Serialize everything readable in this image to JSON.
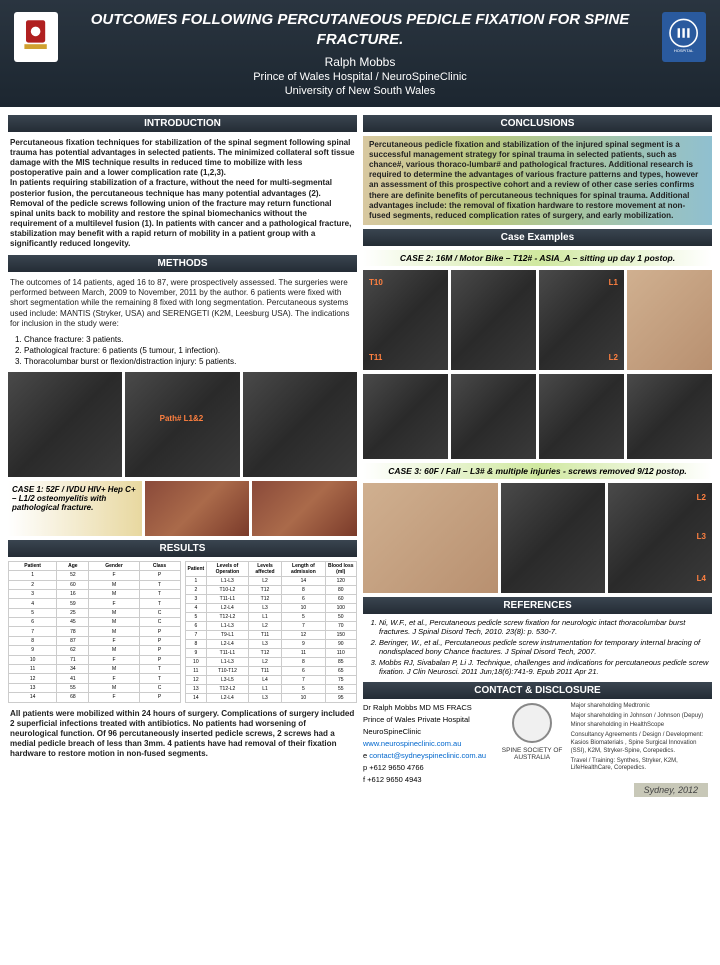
{
  "header": {
    "title": "OUTCOMES FOLLOWING PERCUTANEOUS PEDICLE FIXATION FOR SPINE FRACTURE.",
    "author": "Ralph Mobbs",
    "affil1": "Prince of Wales Hospital / NeuroSpineClinic",
    "affil2": "University of New South Wales"
  },
  "intro": {
    "heading": "INTRODUCTION",
    "text": "Percutaneous fixation techniques for stabilization of the spinal segment following spinal trauma has potential advantages in selected patients. The minimized collateral soft tissue damage with the MIS technique results in reduced time to mobilize with less postoperative pain and a lower complication rate (1,2,3).\nIn patients requiring stabilization of a fracture, without the need for multi-segmental posterior fusion, the percutaneous technique has many potential advantages (2). Removal of the pedicle screws following union of the fracture may return functional spinal units back to mobility and restore the spinal biomechanics without the requirement of a multilevel fusion (1). In patients with cancer and a pathological fracture, stabilization may benefit with a rapid return of mobility in a patient group with a significantly reduced longevity."
  },
  "methods": {
    "heading": "METHODS",
    "text": "The outcomes of 14 patients, aged 16 to 87, were prospectively assessed. The surgeries were performed between March, 2009 to November, 2011 by the author. 6 patients were fixed with short segmentation while the remaining 8 fixed with long segmentation. Percutaneous systems used include: MANTIS (Stryker, USA) and SERENGETI (K2M, Leesburg USA). The indications for inclusion in the study were:",
    "items": [
      "Chance fracture:   3 patients.",
      "Pathological fracture:  6 patients (5 tumour, 1 infection).",
      "Thoracolumbar burst or flexion/distraction injury:  5 patients."
    ]
  },
  "case1": {
    "label": "CASE 1: 52F / IVDU HIV+ Hep C+  – L1/2 osteomyelitis with pathological fracture."
  },
  "results": {
    "heading": "RESULTS",
    "headers1": [
      "Patient",
      "Age",
      "Gender",
      "Class"
    ],
    "headers2": [
      "Patient",
      "Levels of Operation",
      "Levels affected",
      "Length of admission",
      "Blood loss (ml)"
    ],
    "rows1": [
      [
        "1",
        "52",
        "F",
        "P"
      ],
      [
        "2",
        "60",
        "M",
        "T"
      ],
      [
        "3",
        "16",
        "M",
        "T"
      ],
      [
        "4",
        "59",
        "F",
        "T"
      ],
      [
        "5",
        "25",
        "M",
        "C"
      ],
      [
        "6",
        "45",
        "M",
        "C"
      ],
      [
        "7",
        "78",
        "M",
        "P"
      ],
      [
        "8",
        "87",
        "F",
        "P"
      ],
      [
        "9",
        "62",
        "M",
        "P"
      ],
      [
        "10",
        "71",
        "F",
        "P"
      ],
      [
        "11",
        "34",
        "M",
        "T"
      ],
      [
        "12",
        "41",
        "F",
        "T"
      ],
      [
        "13",
        "55",
        "M",
        "C"
      ],
      [
        "14",
        "68",
        "F",
        "P"
      ]
    ],
    "rows2": [
      [
        "1",
        "L1-L3",
        "L2",
        "14",
        "120"
      ],
      [
        "2",
        "T10-L2",
        "T12",
        "8",
        "80"
      ],
      [
        "3",
        "T11-L1",
        "T12",
        "6",
        "60"
      ],
      [
        "4",
        "L2-L4",
        "L3",
        "10",
        "100"
      ],
      [
        "5",
        "T12-L2",
        "L1",
        "5",
        "50"
      ],
      [
        "6",
        "L1-L3",
        "L2",
        "7",
        "70"
      ],
      [
        "7",
        "T9-L1",
        "T11",
        "12",
        "150"
      ],
      [
        "8",
        "L2-L4",
        "L3",
        "9",
        "90"
      ],
      [
        "9",
        "T11-L1",
        "T12",
        "11",
        "110"
      ],
      [
        "10",
        "L1-L3",
        "L2",
        "8",
        "85"
      ],
      [
        "11",
        "T10-T12",
        "T11",
        "6",
        "65"
      ],
      [
        "12",
        "L3-L5",
        "L4",
        "7",
        "75"
      ],
      [
        "13",
        "T12-L2",
        "L1",
        "5",
        "55"
      ],
      [
        "14",
        "L2-L4",
        "L3",
        "10",
        "95"
      ]
    ],
    "text": "All patients were mobilized within 24 hours of surgery. Complications of surgery included 2 superficial infections treated with antibiotics. No patients had worsening of neurological function. Of 96 percutaneously inserted pedicle screws, 2 screws had a medial pedicle breach of less than 3mm. 4 patients have had removal of their fixation hardware to restore motion in non-fused segments."
  },
  "conclusions": {
    "heading": "CONCLUSIONS",
    "text": "Percutaneous pedicle fixation and stabilization of the injured spinal segment is a successful management strategy for spinal trauma in selected patients, such as chance#, various thoraco-lumbar# and pathological fractures. Additional research is required to determine the advantages of  various fracture patterns and types, however an assessment of this prospective cohort and a review of other case series confirms there are definite benefits of percutaneous techniques for spinal trauma. Additional advantages include: the removal of fixation hardware to restore movement at non-fused segments, reduced complication rates of surgery, and early mobilization."
  },
  "case_examples": {
    "heading": "Case Examples",
    "case2": "CASE 2: 16M / Motor Bike – T12# - ASIA_A – sitting up day 1 postop.",
    "case3": "CASE 3: 60F / Fall – L3# & multiple injuries - screws removed 9/12 postop.",
    "labels": {
      "t10": "T10",
      "t11": "T11",
      "l1": "L1",
      "l2": "L2",
      "l3": "L3",
      "l4": "L4"
    }
  },
  "refs": {
    "heading": "REFERENCES",
    "items": [
      "Ni, W.F., et al., Percutaneous pedicle screw fixation for neurologic intact thoracolumbar burst fractures. J Spinal Disord Tech, 2010. 23(8): p. 530-7.",
      "Beringer, W., et al., Percutaneous pedicle screw instrumentation for temporary internal bracing of nondisplaced bony Chance fractures. J Spinal Disord Tech, 2007.",
      "Mobbs RJ, Sivabalan P, Li J. Technique, challenges and indications for percutaneous pedicle screw fixation. J Clin Neurosci. 2011 Jun;18(6):741-9. Epub 2011 Apr 21."
    ]
  },
  "contact": {
    "heading": "CONTACT & DISCLOSURE",
    "name": "Dr Ralph Mobbs  MD MS FRACS",
    "hosp": "Prince of Wales Private Hospital",
    "clinic": "NeuroSpineClinic",
    "web": "www.neurospineclinic.com.au",
    "email_label": "e ",
    "email": "contact@sydneyspineclinic.com.au",
    "phone": "p +612 9650 4766",
    "fax": "f +612 9650 4943",
    "org": "SPINE SOCIETY OF AUSTRALIA",
    "disclosures": [
      "Major shareholding Medtronic",
      "Major shareholding in Johnson / Johnson (Depuy)",
      "Minor shareholding in HealthScope",
      "Consultancy Agreements / Design / Development: Kasios Biomaterials , Spine Surgical Innovation (SSI), K2M, Stryker-Spine, Corepedics.",
      "Travel / Training: Synthes, Stryker, K2M, LifeHealthCare, Corepedics."
    ]
  },
  "footer": "Sydney, 2012"
}
